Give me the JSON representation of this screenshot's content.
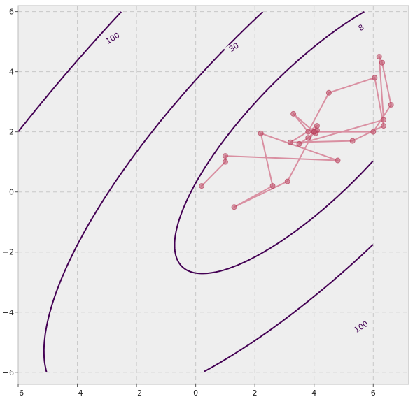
{
  "chart_data": {
    "type": "contour",
    "title": "",
    "xlabel": "",
    "ylabel": "",
    "xlim": [
      -6,
      7.2
    ],
    "ylim": [
      -6.4,
      6.2
    ],
    "x_ticks": [
      "−6",
      "−4",
      "−2",
      "0",
      "2",
      "4",
      "6"
    ],
    "y_ticks": [
      "−6",
      "−4",
      "−2",
      "0",
      "2",
      "4",
      "6"
    ],
    "grid": true,
    "background_color": "#eeeeee",
    "contour_color": "#440154",
    "contour_levels": [
      {
        "label": "8",
        "label_at": [
          5.6,
          5.45
        ]
      },
      {
        "label": "30",
        "label_at": [
          1.3,
          4.8
        ]
      },
      {
        "label": "100",
        "label_at": [
          -2.8,
          5.1
        ]
      },
      {
        "label": "100",
        "label_at": [
          5.6,
          -4.5
        ]
      }
    ],
    "trajectory_color": "#d98fa1",
    "trajectory": [
      [
        0.2,
        0.2
      ],
      [
        1.0,
        1.0
      ],
      [
        1.0,
        1.2
      ],
      [
        4.8,
        1.05
      ],
      [
        2.2,
        1.95
      ],
      [
        2.6,
        0.2
      ],
      [
        1.3,
        -0.5
      ],
      [
        3.1,
        0.35
      ],
      [
        4.1,
        2.2
      ],
      [
        3.2,
        1.65
      ],
      [
        5.3,
        1.7
      ],
      [
        6.35,
        2.2
      ],
      [
        6.05,
        3.8
      ],
      [
        4.5,
        3.3
      ],
      [
        3.8,
        2.0
      ],
      [
        3.3,
        2.6
      ],
      [
        4.0,
        2.0
      ],
      [
        6.0,
        2.0
      ],
      [
        6.6,
        2.9
      ],
      [
        6.3,
        4.3
      ],
      [
        6.2,
        4.5
      ],
      [
        6.35,
        2.4
      ],
      [
        3.5,
        1.6
      ],
      [
        3.8,
        1.8
      ],
      [
        4.0,
        2.0
      ],
      [
        4.1,
        2.05
      ],
      [
        4.05,
        1.95
      ],
      [
        4.0,
        2.0
      ]
    ]
  }
}
